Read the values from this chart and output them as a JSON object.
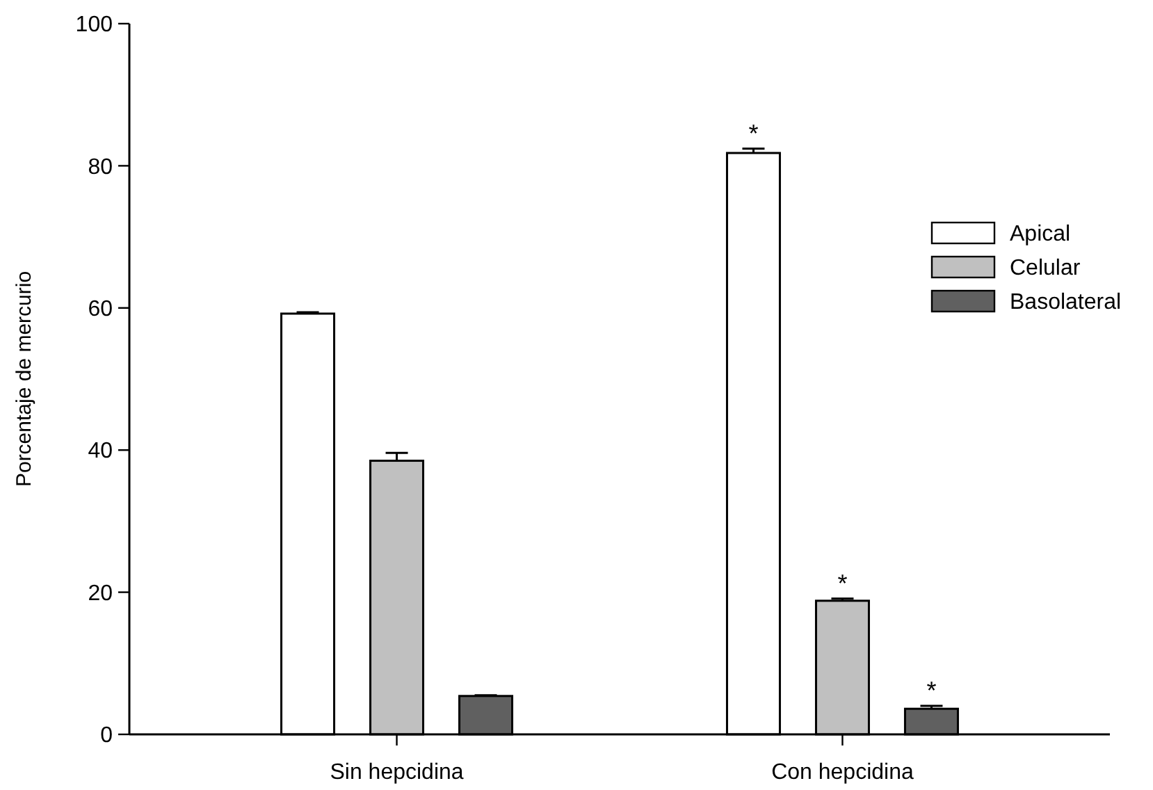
{
  "chart_data": {
    "type": "bar",
    "ylabel": "Porcentaje de mercurio",
    "categories": [
      "Sin hepcidina",
      "Con hepcidina"
    ],
    "series": [
      {
        "name": "Apical",
        "color": "#ffffff",
        "values": [
          59.2,
          81.8
        ],
        "errors": [
          0.2,
          0.6
        ],
        "value_labels": [
          null,
          "*"
        ]
      },
      {
        "name": "Celular",
        "color": "#c0c0c0",
        "values": [
          38.5,
          18.8
        ],
        "errors": [
          1.1,
          0.3
        ],
        "value_labels": [
          null,
          "*"
        ]
      },
      {
        "name": "Basolateral",
        "color": "#606060",
        "values": [
          5.4,
          3.6
        ],
        "errors": [
          0.1,
          0.4
        ],
        "value_labels": [
          null,
          "*"
        ]
      }
    ],
    "ylim": [
      0,
      100
    ],
    "yticks": [
      0,
      20,
      40,
      60,
      80,
      100
    ],
    "legend": "top right",
    "grid": false
  }
}
